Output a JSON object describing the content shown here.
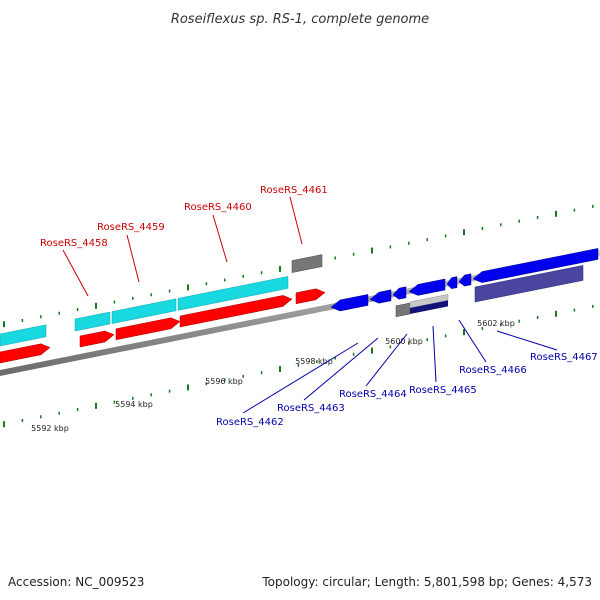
{
  "title": "Roseiflexus sp. RS-1, complete genome",
  "footer": {
    "accession": "Accession: NC_009523",
    "topology": "Topology: circular; Length: 5,801,598 bp; Genes: 4,573"
  },
  "colors": {
    "forward_cds": "#ff0000",
    "forward_gene": "#19d8df",
    "reverse_cds": "#0000ee",
    "reverse_gene": "#4a46a0",
    "pseudo": "#777777",
    "backbone": "#888888",
    "ticks": "#1a7a1a",
    "forward_label": "#cc0000",
    "reverse_label": "#0000aa"
  },
  "scale_labels": [
    "5592 kbp",
    "5594 kbp",
    "5596 kbp",
    "5598 kbp",
    "5600 kbp",
    "5602 kbp"
  ],
  "forward_genes": [
    {
      "locus": "RoseRS_4458"
    },
    {
      "locus": "RoseRS_4459"
    },
    {
      "locus": "RoseRS_4460"
    },
    {
      "locus": "RoseRS_4461"
    }
  ],
  "reverse_genes": [
    {
      "locus": "RoseRS_4462"
    },
    {
      "locus": "RoseRS_4463"
    },
    {
      "locus": "RoseRS_4464"
    },
    {
      "locus": "RoseRS_4465"
    },
    {
      "locus": "RoseRS_4466"
    },
    {
      "locus": "RoseRS_4467"
    }
  ]
}
